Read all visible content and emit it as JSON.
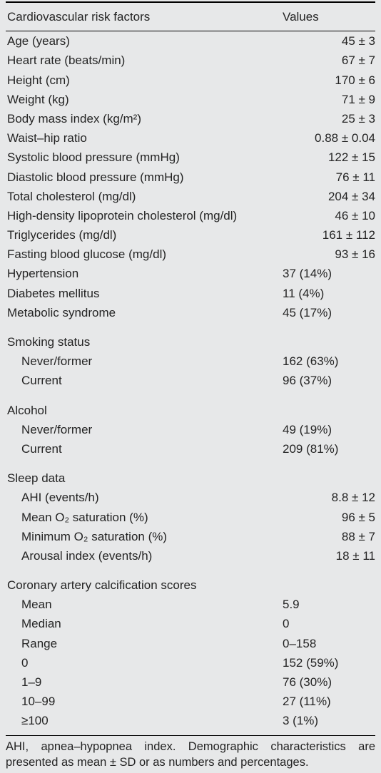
{
  "header": {
    "left": "Cardiovascular risk factors",
    "right": "Values"
  },
  "rows": [
    {
      "l": "Age (years)",
      "v": "45 ± 3",
      "align": "r"
    },
    {
      "l": "Heart rate (beats/min)",
      "v": "67 ± 7",
      "align": "r"
    },
    {
      "l": "Height (cm)",
      "v": "170 ± 6",
      "align": "r"
    },
    {
      "l": "Weight (kg)",
      "v": "71 ± 9",
      "align": "r"
    },
    {
      "l": "Body mass index (kg/m²)",
      "v": "25 ± 3",
      "align": "r"
    },
    {
      "l": "Waist–hip ratio",
      "v": "0.88 ± 0.04",
      "align": "r"
    },
    {
      "l": "Systolic blood pressure (mmHg)",
      "v": "122 ± 15",
      "align": "r"
    },
    {
      "l": "Diastolic blood pressure (mmHg)",
      "v": "76 ± 11",
      "align": "r"
    },
    {
      "l": "Total cholesterol (mg/dl)",
      "v": "204 ± 34",
      "align": "r"
    },
    {
      "l": "High-density lipoprotein cholesterol (mg/dl)",
      "v": "46 ± 10",
      "align": "r"
    },
    {
      "l": "Triglycerides (mg/dl)",
      "v": "161 ± 112",
      "align": "r"
    },
    {
      "l": "Fasting blood glucose (mg/dl)",
      "v": "93 ± 16",
      "align": "r"
    },
    {
      "l": "Hypertension",
      "v": "37 (14%)",
      "align": "l"
    },
    {
      "l": "Diabetes mellitus",
      "v": "11 (4%)",
      "align": "l"
    },
    {
      "l": "Metabolic syndrome",
      "v": "45 (17%)",
      "align": "l"
    }
  ],
  "groups": [
    {
      "title": "Smoking status",
      "items": [
        {
          "l": "Never/former",
          "v": "162 (63%)",
          "align": "l"
        },
        {
          "l": "Current",
          "v": "96 (37%)",
          "align": "l"
        }
      ]
    },
    {
      "title": "Alcohol",
      "items": [
        {
          "l": "Never/former",
          "v": "49 (19%)",
          "align": "l"
        },
        {
          "l": "Current",
          "v": "209 (81%)",
          "align": "l"
        }
      ]
    },
    {
      "title": "Sleep data",
      "items": [
        {
          "l": "AHI (events/h)",
          "v": "8.8 ± 12",
          "align": "r"
        },
        {
          "l": "Mean O₂ saturation (%)",
          "v": "96 ± 5",
          "align": "r"
        },
        {
          "l": "Minimum O₂ saturation (%)",
          "v": "88 ± 7",
          "align": "r"
        },
        {
          "l": "Arousal index (events/h)",
          "v": "18 ± 11",
          "align": "r"
        }
      ]
    },
    {
      "title": "Coronary artery calcification scores",
      "items": [
        {
          "l": "Mean",
          "v": "5.9",
          "align": "l"
        },
        {
          "l": "Median",
          "v": "0",
          "align": "l"
        },
        {
          "l": "Range",
          "v": "0–158",
          "align": "l"
        },
        {
          "l": "0",
          "v": "152 (59%)",
          "align": "l"
        },
        {
          "l": "1–9",
          "v": "76 (30%)",
          "align": "l"
        },
        {
          "l": "10–99",
          "v": "27 (11%)",
          "align": "l"
        },
        {
          "l": "≥100",
          "v": "3 (1%)",
          "align": "l"
        }
      ]
    }
  ],
  "footnote": "AHI, apnea–hypopnea index. Demographic characteristics are presented as mean ± SD or as numbers and percentages."
}
